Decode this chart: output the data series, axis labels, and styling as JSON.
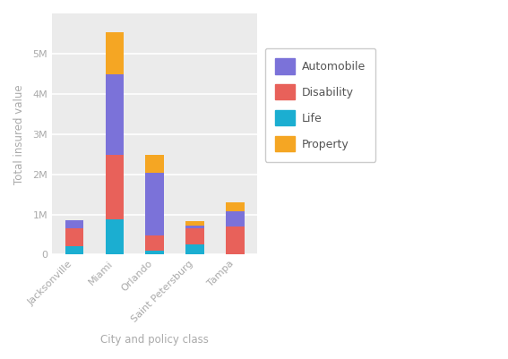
{
  "cities": [
    "Jacksonville",
    "Miami",
    "Orlando",
    "Saint Petersburg",
    "Tampa"
  ],
  "life": [
    200000,
    880000,
    100000,
    250000,
    0
  ],
  "disability": [
    450000,
    1600000,
    380000,
    400000,
    700000
  ],
  "automobile": [
    200000,
    2000000,
    1550000,
    80000,
    380000
  ],
  "property": [
    0,
    1050000,
    450000,
    100000,
    230000
  ],
  "colors": {
    "Automobile": "#7B72D9",
    "Disability": "#E8615A",
    "Life": "#1BAED1",
    "Property": "#F5A623"
  },
  "legend_text_color": "#555555",
  "ylabel": "Total insured value",
  "xlabel": "City and policy class",
  "ylim": [
    0,
    6000000
  ],
  "yticks": [
    0,
    1000000,
    2000000,
    3000000,
    4000000,
    5000000
  ],
  "ytick_labels": [
    "0",
    "1M",
    "2M",
    "3M",
    "4M",
    "5M"
  ],
  "plot_bg_color": "#EBEBEB",
  "figure_bg_color": "#FFFFFF",
  "grid_color": "#FFFFFF",
  "tick_color": "#AAAAAA",
  "label_color": "#AAAAAA",
  "legend_labels": [
    "Automobile",
    "Disability",
    "Life",
    "Property"
  ],
  "bar_width": 0.45
}
